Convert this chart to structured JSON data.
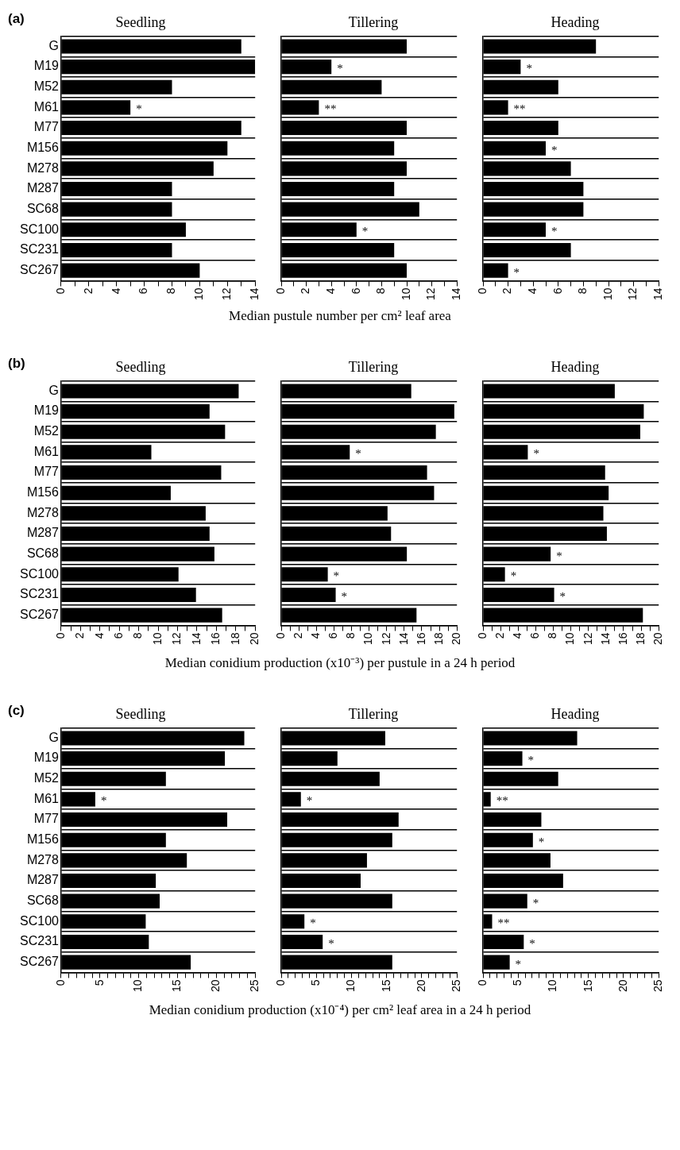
{
  "chart_data": [
    {
      "type": "bar",
      "orientation": "horizontal",
      "title": "Seedling",
      "annotations": [
        "(a)",
        {
          "text": "*",
          "x": 5,
          "y": "M61"
        }
      ],
      "categories": [
        "G",
        "M19",
        "M52",
        "M61",
        "M77",
        "M156",
        "M278",
        "M287",
        "SC68",
        "SC100",
        "SC231",
        "SC267"
      ],
      "values": [
        13,
        14,
        8,
        5,
        13,
        12,
        11,
        8,
        8,
        9,
        8,
        10
      ],
      "color": "#000000",
      "xlim": [
        0,
        14
      ],
      "xticks": [
        0,
        {
          "value": 1,
          "label": null
        },
        2,
        {
          "value": 3,
          "label": null
        },
        4,
        {
          "value": 5,
          "label": null
        },
        6,
        {
          "value": 7,
          "label": null
        },
        8,
        {
          "value": 9,
          "label": null
        },
        10,
        {
          "value": 11,
          "label": null
        },
        12,
        {
          "value": 13,
          "label": null
        },
        14
      ],
      "grid": "y",
      "legend": false
    },
    {
      "type": "bar",
      "orientation": "horizontal",
      "title": "Tillering",
      "xlabel": "Median pustule number per cm² leaf area",
      "annotations": [
        {
          "text": "*",
          "x": 4,
          "y": "M19"
        },
        {
          "text": "**",
          "x": 3,
          "y": "M61"
        },
        {
          "text": "*",
          "x": 6,
          "y": "SC100"
        }
      ],
      "categories": [
        "G",
        "M19",
        "M52",
        "M61",
        "M77",
        "M156",
        "M278",
        "M287",
        "SC68",
        "SC100",
        "SC231",
        "SC267"
      ],
      "values": [
        10,
        4,
        8,
        3,
        10,
        9,
        10,
        9,
        11,
        6,
        9,
        10
      ],
      "color": "#000000",
      "xlim": [
        0,
        14
      ],
      "xticks": [
        0,
        {
          "value": 1,
          "label": null
        },
        2,
        {
          "value": 3,
          "label": null
        },
        4,
        {
          "value": 5,
          "label": null
        },
        6,
        {
          "value": 7,
          "label": null
        },
        8,
        {
          "value": 9,
          "label": null
        },
        10,
        {
          "value": 11,
          "label": null
        },
        12,
        {
          "value": 13,
          "label": null
        },
        14
      ],
      "grid": "y",
      "legend": false,
      "tick_labels": "x"
    },
    {
      "type": "bar",
      "orientation": "horizontal",
      "title": "Heading",
      "annotations": [
        {
          "text": "*",
          "x": 3,
          "y": "M19"
        },
        {
          "text": "**",
          "x": 2,
          "y": "M61"
        },
        {
          "text": "*",
          "x": 5,
          "y": "M156"
        },
        {
          "text": "*",
          "x": 5,
          "y": "SC100"
        },
        {
          "text": "*",
          "x": 2,
          "y": "SC267"
        }
      ],
      "categories": [
        "G",
        "M19",
        "M52",
        "M61",
        "M77",
        "M156",
        "M278",
        "M287",
        "SC68",
        "SC100",
        "SC231",
        "SC267"
      ],
      "values": [
        9,
        3,
        6,
        2,
        6,
        5,
        7,
        8,
        8,
        5,
        7,
        2
      ],
      "color": "#000000",
      "xlim": [
        0,
        14
      ],
      "xticks": [
        0,
        {
          "value": 1,
          "label": null
        },
        2,
        {
          "value": 3,
          "label": null
        },
        4,
        {
          "value": 5,
          "label": null
        },
        6,
        {
          "value": 7,
          "label": null
        },
        8,
        {
          "value": 9,
          "label": null
        },
        10,
        {
          "value": 11,
          "label": null
        },
        12,
        {
          "value": 13,
          "label": null
        },
        14
      ],
      "grid": "y",
      "legend": false,
      "tick_labels": "x"
    },
    {
      "type": "bar",
      "orientation": "horizontal",
      "title": "Seedling",
      "annotations": [
        "(b)"
      ],
      "categories": [
        "G",
        "M19",
        "M52",
        "M61",
        "M77",
        "M156",
        "M278",
        "M287",
        "SC68",
        "SC100",
        "SC231",
        "SC267"
      ],
      "values": [
        18.3,
        15.3,
        16.9,
        9.3,
        16.5,
        11.3,
        14.9,
        15.3,
        15.8,
        12.1,
        13.9,
        16.6
      ],
      "color": "#000000",
      "xlim": [
        0,
        20
      ],
      "xticks": [
        0,
        {
          "value": 1,
          "label": null
        },
        2,
        {
          "value": 3,
          "label": null
        },
        4,
        {
          "value": 5,
          "label": null
        },
        6,
        {
          "value": 7,
          "label": null
        },
        8,
        {
          "value": 9,
          "label": null
        },
        10,
        {
          "value": 11,
          "label": null
        },
        12,
        {
          "value": 13,
          "label": null
        },
        14,
        {
          "value": 15,
          "label": null
        },
        16,
        {
          "value": 17,
          "label": null
        },
        18,
        {
          "value": 19,
          "label": null
        },
        20
      ],
      "grid": "y",
      "legend": false
    },
    {
      "type": "bar",
      "orientation": "horizontal",
      "title": "Tillering",
      "xlabel": "Median conidium production (x10⁻³) per pustule in  a  24 h period",
      "annotations": [
        {
          "text": "*",
          "x": 7.8,
          "y": "M61"
        },
        {
          "text": "*",
          "x": 5.3,
          "y": "SC100"
        },
        {
          "text": "*",
          "x": 6.2,
          "y": "SC231"
        }
      ],
      "categories": [
        "G",
        "M19",
        "M52",
        "M61",
        "M77",
        "M156",
        "M278",
        "M287",
        "SC68",
        "SC100",
        "SC231",
        "SC267"
      ],
      "values": [
        14.8,
        19.7,
        17.6,
        7.8,
        16.6,
        17.4,
        12.1,
        12.5,
        14.3,
        5.3,
        6.2,
        15.4
      ],
      "color": "#000000",
      "xlim": [
        0,
        20
      ],
      "xticks": [
        0,
        {
          "value": 1,
          "label": null
        },
        2,
        {
          "value": 3,
          "label": null
        },
        4,
        {
          "value": 5,
          "label": null
        },
        6,
        {
          "value": 7,
          "label": null
        },
        8,
        {
          "value": 9,
          "label": null
        },
        10,
        {
          "value": 11,
          "label": null
        },
        12,
        {
          "value": 13,
          "label": null
        },
        14,
        {
          "value": 15,
          "label": null
        },
        16,
        {
          "value": 17,
          "label": null
        },
        18,
        {
          "value": 19,
          "label": null
        },
        20
      ],
      "grid": "y",
      "legend": false,
      "tick_labels": "x"
    },
    {
      "type": "bar",
      "orientation": "horizontal",
      "title": "Heading",
      "annotations": [
        {
          "text": "*",
          "x": 5.1,
          "y": "M61"
        },
        {
          "text": "*",
          "x": 7.7,
          "y": "SC68"
        },
        {
          "text": "*",
          "x": 2.5,
          "y": "SC100"
        },
        {
          "text": "*",
          "x": 8.1,
          "y": "SC231"
        }
      ],
      "categories": [
        "G",
        "M19",
        "M52",
        "M61",
        "M77",
        "M156",
        "M278",
        "M287",
        "SC68",
        "SC100",
        "SC231",
        "SC267"
      ],
      "values": [
        15,
        18.3,
        17.9,
        5.1,
        13.9,
        14.3,
        13.7,
        14.1,
        7.7,
        2.5,
        8.1,
        18.2
      ],
      "color": "#000000",
      "xlim": [
        0,
        20
      ],
      "xticks": [
        0,
        {
          "value": 1,
          "label": null
        },
        2,
        {
          "value": 3,
          "label": null
        },
        4,
        {
          "value": 5,
          "label": null
        },
        6,
        {
          "value": 7,
          "label": null
        },
        8,
        {
          "value": 9,
          "label": null
        },
        10,
        {
          "value": 11,
          "label": null
        },
        12,
        {
          "value": 13,
          "label": null
        },
        14,
        {
          "value": 15,
          "label": null
        },
        16,
        {
          "value": 17,
          "label": null
        },
        18,
        {
          "value": 19,
          "label": null
        },
        20
      ],
      "grid": "y",
      "legend": false,
      "tick_labels": "x"
    },
    {
      "type": "bar",
      "orientation": "horizontal",
      "title": "Seedling",
      "annotations": [
        "(c)",
        {
          "text": "*",
          "x": 4.4,
          "y": "M61"
        }
      ],
      "categories": [
        "G",
        "M19",
        "M52",
        "M61",
        "M77",
        "M156",
        "M278",
        "M287",
        "SC68",
        "SC100",
        "SC231",
        "SC267"
      ],
      "values": [
        23.6,
        21.1,
        13.5,
        4.4,
        21.4,
        13.5,
        16.2,
        12.2,
        12.7,
        10.9,
        11.3,
        16.7
      ],
      "color": "#000000",
      "xlim": [
        0,
        25
      ],
      "xticks": [
        0,
        {
          "value": 1,
          "label": null
        },
        {
          "value": 2,
          "label": null
        },
        {
          "value": 3,
          "label": null
        },
        {
          "value": 4,
          "label": null
        },
        5,
        {
          "value": 6,
          "label": null
        },
        {
          "value": 7,
          "label": null
        },
        {
          "value": 8,
          "label": null
        },
        {
          "value": 9,
          "label": null
        },
        10,
        {
          "value": 11,
          "label": null
        },
        {
          "value": 12,
          "label": null
        },
        {
          "value": 13,
          "label": null
        },
        {
          "value": 14,
          "label": null
        },
        15,
        {
          "value": 16,
          "label": null
        },
        {
          "value": 17,
          "label": null
        },
        {
          "value": 18,
          "label": null
        },
        {
          "value": 19,
          "label": null
        },
        20,
        {
          "value": 21,
          "label": null
        },
        {
          "value": 22,
          "label": null
        },
        {
          "value": 23,
          "label": null
        },
        {
          "value": 24,
          "label": null
        },
        25
      ],
      "grid": "y",
      "legend": false
    },
    {
      "type": "bar",
      "orientation": "horizontal",
      "title": "Tillering",
      "xlabel": "Median conidium production (x10⁻⁴) per cm² leaf area in a 24 h period",
      "annotations": [
        {
          "text": "*",
          "x": 2.8,
          "y": "M61"
        },
        {
          "text": "*",
          "x": 3.3,
          "y": "SC100"
        },
        {
          "text": "*",
          "x": 5.9,
          "y": "SC231"
        }
      ],
      "categories": [
        "G",
        "M19",
        "M52",
        "M61",
        "M77",
        "M156",
        "M278",
        "M287",
        "SC68",
        "SC100",
        "SC231",
        "SC267"
      ],
      "values": [
        14.8,
        8,
        14,
        2.8,
        16.7,
        15.8,
        12.2,
        11.3,
        15.8,
        3.3,
        5.9,
        15.8
      ],
      "color": "#000000",
      "xlim": [
        0,
        25
      ],
      "xticks": [
        0,
        {
          "value": 1,
          "label": null
        },
        {
          "value": 2,
          "label": null
        },
        {
          "value": 3,
          "label": null
        },
        {
          "value": 4,
          "label": null
        },
        5,
        {
          "value": 6,
          "label": null
        },
        {
          "value": 7,
          "label": null
        },
        {
          "value": 8,
          "label": null
        },
        {
          "value": 9,
          "label": null
        },
        10,
        {
          "value": 11,
          "label": null
        },
        {
          "value": 12,
          "label": null
        },
        {
          "value": 13,
          "label": null
        },
        {
          "value": 14,
          "label": null
        },
        15,
        {
          "value": 16,
          "label": null
        },
        {
          "value": 17,
          "label": null
        },
        {
          "value": 18,
          "label": null
        },
        {
          "value": 19,
          "label": null
        },
        20,
        {
          "value": 21,
          "label": null
        },
        {
          "value": 22,
          "label": null
        },
        {
          "value": 23,
          "label": null
        },
        {
          "value": 24,
          "label": null
        },
        25
      ],
      "grid": "y",
      "legend": false,
      "tick_labels": "x"
    },
    {
      "type": "bar",
      "orientation": "horizontal",
      "title": "Heading",
      "annotations": [
        {
          "text": "*",
          "x": 5.6,
          "y": "M19"
        },
        {
          "text": "**",
          "x": 1.1,
          "y": "M61"
        },
        {
          "text": "*",
          "x": 7.1,
          "y": "M156"
        },
        {
          "text": "*",
          "x": 6.3,
          "y": "SC68"
        },
        {
          "text": "**",
          "x": 1.3,
          "y": "SC100"
        },
        {
          "text": "*",
          "x": 5.8,
          "y": "SC231"
        },
        {
          "text": "*",
          "x": 3.8,
          "y": "SC267"
        }
      ],
      "categories": [
        "G",
        "M19",
        "M52",
        "M61",
        "M77",
        "M156",
        "M278",
        "M287",
        "SC68",
        "SC100",
        "SC231",
        "SC267"
      ],
      "values": [
        13.4,
        5.6,
        10.7,
        1.1,
        8.3,
        7.1,
        9.6,
        11.4,
        6.3,
        1.3,
        5.8,
        3.8
      ],
      "color": "#000000",
      "xlim": [
        0,
        25
      ],
      "xticks": [
        0,
        {
          "value": 1,
          "label": null
        },
        {
          "value": 2,
          "label": null
        },
        {
          "value": 3,
          "label": null
        },
        {
          "value": 4,
          "label": null
        },
        5,
        {
          "value": 6,
          "label": null
        },
        {
          "value": 7,
          "label": null
        },
        {
          "value": 8,
          "label": null
        },
        {
          "value": 9,
          "label": null
        },
        10,
        {
          "value": 11,
          "label": null
        },
        {
          "value": 12,
          "label": null
        },
        {
          "value": 13,
          "label": null
        },
        {
          "value": 14,
          "label": null
        },
        15,
        {
          "value": 16,
          "label": null
        },
        {
          "value": 17,
          "label": null
        },
        {
          "value": 18,
          "label": null
        },
        {
          "value": 19,
          "label": null
        },
        20,
        {
          "value": 21,
          "label": null
        },
        {
          "value": 22,
          "label": null
        },
        {
          "value": 23,
          "label": null
        },
        {
          "value": 24,
          "label": null
        },
        25
      ],
      "grid": "y",
      "legend": false,
      "tick_labels": "x"
    }
  ]
}
